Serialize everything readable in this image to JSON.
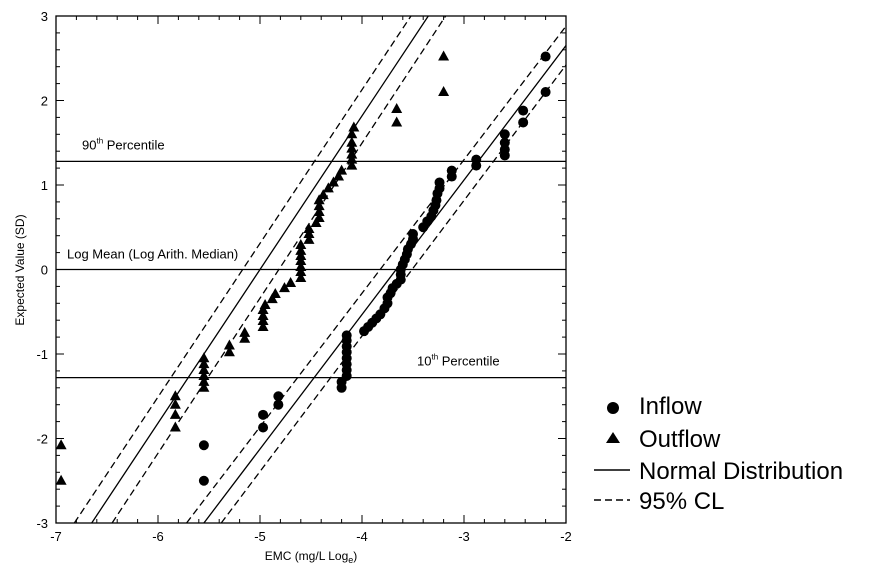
{
  "chart_data": {
    "type": "scatter",
    "xlabel": "EMC (mg/L Log",
    "xlabel_sub": "e",
    "xlabel_close": ")",
    "ylabel": "Expected Value (SD)",
    "xlim": [
      -7,
      -2
    ],
    "ylim": [
      -3,
      3
    ],
    "xticks": [
      -7,
      -6,
      -5,
      -4,
      -3,
      -2
    ],
    "yticks": [
      -3,
      -2,
      -1,
      0,
      1,
      2,
      3
    ],
    "grid": false,
    "legend_position": "bottom-right",
    "hlines": [
      {
        "y": 1.28,
        "label": "90",
        "label_sup": "th",
        "label_rest": " Percentile"
      },
      {
        "y": 0,
        "label": "Log Mean (Log Arith. Median)",
        "label_sup": "",
        "label_rest": ""
      },
      {
        "y": -1.28,
        "label": "10",
        "label_sup": "th",
        "label_rest": " Percentile"
      }
    ],
    "fit_lines": [
      {
        "series": "Inflow",
        "points": [
          [
            -5.55,
            -3
          ],
          [
            -2,
            2.65
          ]
        ],
        "style": "solid"
      },
      {
        "series": "Inflow",
        "points": [
          [
            -5.38,
            -3
          ],
          [
            -2,
            2.42
          ]
        ],
        "style": "dashed"
      },
      {
        "series": "Inflow",
        "points": [
          [
            -5.72,
            -3
          ],
          [
            -2,
            2.88
          ]
        ],
        "style": "dashed"
      },
      {
        "series": "Outflow",
        "points": [
          [
            -6.65,
            -3
          ],
          [
            -3.35,
            3
          ]
        ],
        "style": "solid"
      },
      {
        "series": "Outflow",
        "points": [
          [
            -6.45,
            -3
          ],
          [
            -3.18,
            3
          ]
        ],
        "style": "dashed"
      },
      {
        "series": "Outflow",
        "points": [
          [
            -6.82,
            -3
          ],
          [
            -3.52,
            3
          ]
        ],
        "style": "dashed"
      }
    ],
    "series": [
      {
        "name": "Inflow",
        "marker": "circle",
        "points": [
          [
            -5.55,
            -2.5
          ],
          [
            -5.55,
            -2.08
          ],
          [
            -4.97,
            -1.87
          ],
          [
            -4.97,
            -1.72
          ],
          [
            -4.82,
            -1.6
          ],
          [
            -4.82,
            -1.5
          ],
          [
            -4.2,
            -1.4
          ],
          [
            -4.2,
            -1.33
          ],
          [
            -4.15,
            -1.26
          ],
          [
            -4.15,
            -1.19
          ],
          [
            -4.15,
            -1.12
          ],
          [
            -4.15,
            -1.05
          ],
          [
            -4.15,
            -0.98
          ],
          [
            -4.15,
            -0.91
          ],
          [
            -4.15,
            -0.84
          ],
          [
            -4.15,
            -0.78
          ],
          [
            -3.98,
            -0.73
          ],
          [
            -3.94,
            -0.68
          ],
          [
            -3.9,
            -0.63
          ],
          [
            -3.86,
            -0.58
          ],
          [
            -3.82,
            -0.53
          ],
          [
            -3.78,
            -0.46
          ],
          [
            -3.75,
            -0.4
          ],
          [
            -3.75,
            -0.33
          ],
          [
            -3.72,
            -0.28
          ],
          [
            -3.7,
            -0.22
          ],
          [
            -3.66,
            -0.17
          ],
          [
            -3.62,
            -0.12
          ],
          [
            -3.62,
            -0.06
          ],
          [
            -3.62,
            0
          ],
          [
            -3.6,
            0.06
          ],
          [
            -3.58,
            0.12
          ],
          [
            -3.56,
            0.18
          ],
          [
            -3.55,
            0.24
          ],
          [
            -3.52,
            0.3
          ],
          [
            -3.5,
            0.36
          ],
          [
            -3.5,
            0.42
          ],
          [
            -3.4,
            0.5
          ],
          [
            -3.36,
            0.57
          ],
          [
            -3.32,
            0.63
          ],
          [
            -3.3,
            0.7
          ],
          [
            -3.28,
            0.76
          ],
          [
            -3.27,
            0.82
          ],
          [
            -3.26,
            0.9
          ],
          [
            -3.24,
            0.96
          ],
          [
            -3.24,
            1.03
          ],
          [
            -3.12,
            1.1
          ],
          [
            -3.12,
            1.17
          ],
          [
            -2.88,
            1.23
          ],
          [
            -2.88,
            1.3
          ],
          [
            -2.6,
            1.35
          ],
          [
            -2.6,
            1.42
          ],
          [
            -2.6,
            1.5
          ],
          [
            -2.6,
            1.6
          ],
          [
            -2.42,
            1.74
          ],
          [
            -2.42,
            1.88
          ],
          [
            -2.2,
            2.1
          ],
          [
            -2.2,
            2.52
          ]
        ]
      },
      {
        "name": "Outflow",
        "marker": "triangle",
        "points": [
          [
            -6.95,
            -2.5
          ],
          [
            -6.95,
            -2.08
          ],
          [
            -5.83,
            -1.87
          ],
          [
            -5.83,
            -1.72
          ],
          [
            -5.83,
            -1.6
          ],
          [
            -5.83,
            -1.5
          ],
          [
            -5.55,
            -1.4
          ],
          [
            -5.55,
            -1.33
          ],
          [
            -5.55,
            -1.26
          ],
          [
            -5.55,
            -1.19
          ],
          [
            -5.55,
            -1.12
          ],
          [
            -5.55,
            -1.05
          ],
          [
            -5.3,
            -0.98
          ],
          [
            -5.3,
            -0.9
          ],
          [
            -5.15,
            -0.82
          ],
          [
            -5.15,
            -0.75
          ],
          [
            -4.97,
            -0.68
          ],
          [
            -4.97,
            -0.61
          ],
          [
            -4.97,
            -0.55
          ],
          [
            -4.97,
            -0.48
          ],
          [
            -4.95,
            -0.42
          ],
          [
            -4.88,
            -0.35
          ],
          [
            -4.85,
            -0.29
          ],
          [
            -4.76,
            -0.22
          ],
          [
            -4.7,
            -0.16
          ],
          [
            -4.6,
            -0.1
          ],
          [
            -4.6,
            -0.03
          ],
          [
            -4.6,
            0.03
          ],
          [
            -4.6,
            0.1
          ],
          [
            -4.6,
            0.16
          ],
          [
            -4.6,
            0.22
          ],
          [
            -4.6,
            0.29
          ],
          [
            -4.52,
            0.35
          ],
          [
            -4.52,
            0.42
          ],
          [
            -4.52,
            0.48
          ],
          [
            -4.45,
            0.55
          ],
          [
            -4.42,
            0.61
          ],
          [
            -4.42,
            0.68
          ],
          [
            -4.42,
            0.75
          ],
          [
            -4.42,
            0.82
          ],
          [
            -4.38,
            0.88
          ],
          [
            -4.33,
            0.96
          ],
          [
            -4.28,
            1.03
          ],
          [
            -4.23,
            1.1
          ],
          [
            -4.2,
            1.17
          ],
          [
            -4.1,
            1.23
          ],
          [
            -4.1,
            1.3
          ],
          [
            -4.1,
            1.36
          ],
          [
            -4.1,
            1.43
          ],
          [
            -4.1,
            1.5
          ],
          [
            -4.1,
            1.6
          ],
          [
            -4.08,
            1.68
          ],
          [
            -3.66,
            1.74
          ],
          [
            -3.66,
            1.9
          ],
          [
            -3.2,
            2.1
          ],
          [
            -3.2,
            2.52
          ]
        ]
      }
    ],
    "legend": [
      {
        "label": "Inflow",
        "symbol": "circle"
      },
      {
        "label": "Outflow",
        "symbol": "triangle"
      },
      {
        "label": "Normal Distribution",
        "symbol": "solid-line"
      },
      {
        "label": "95% CL",
        "symbol": "dashed-line"
      }
    ],
    "colors": {
      "ink": "#000000",
      "background": "#ffffff"
    }
  }
}
